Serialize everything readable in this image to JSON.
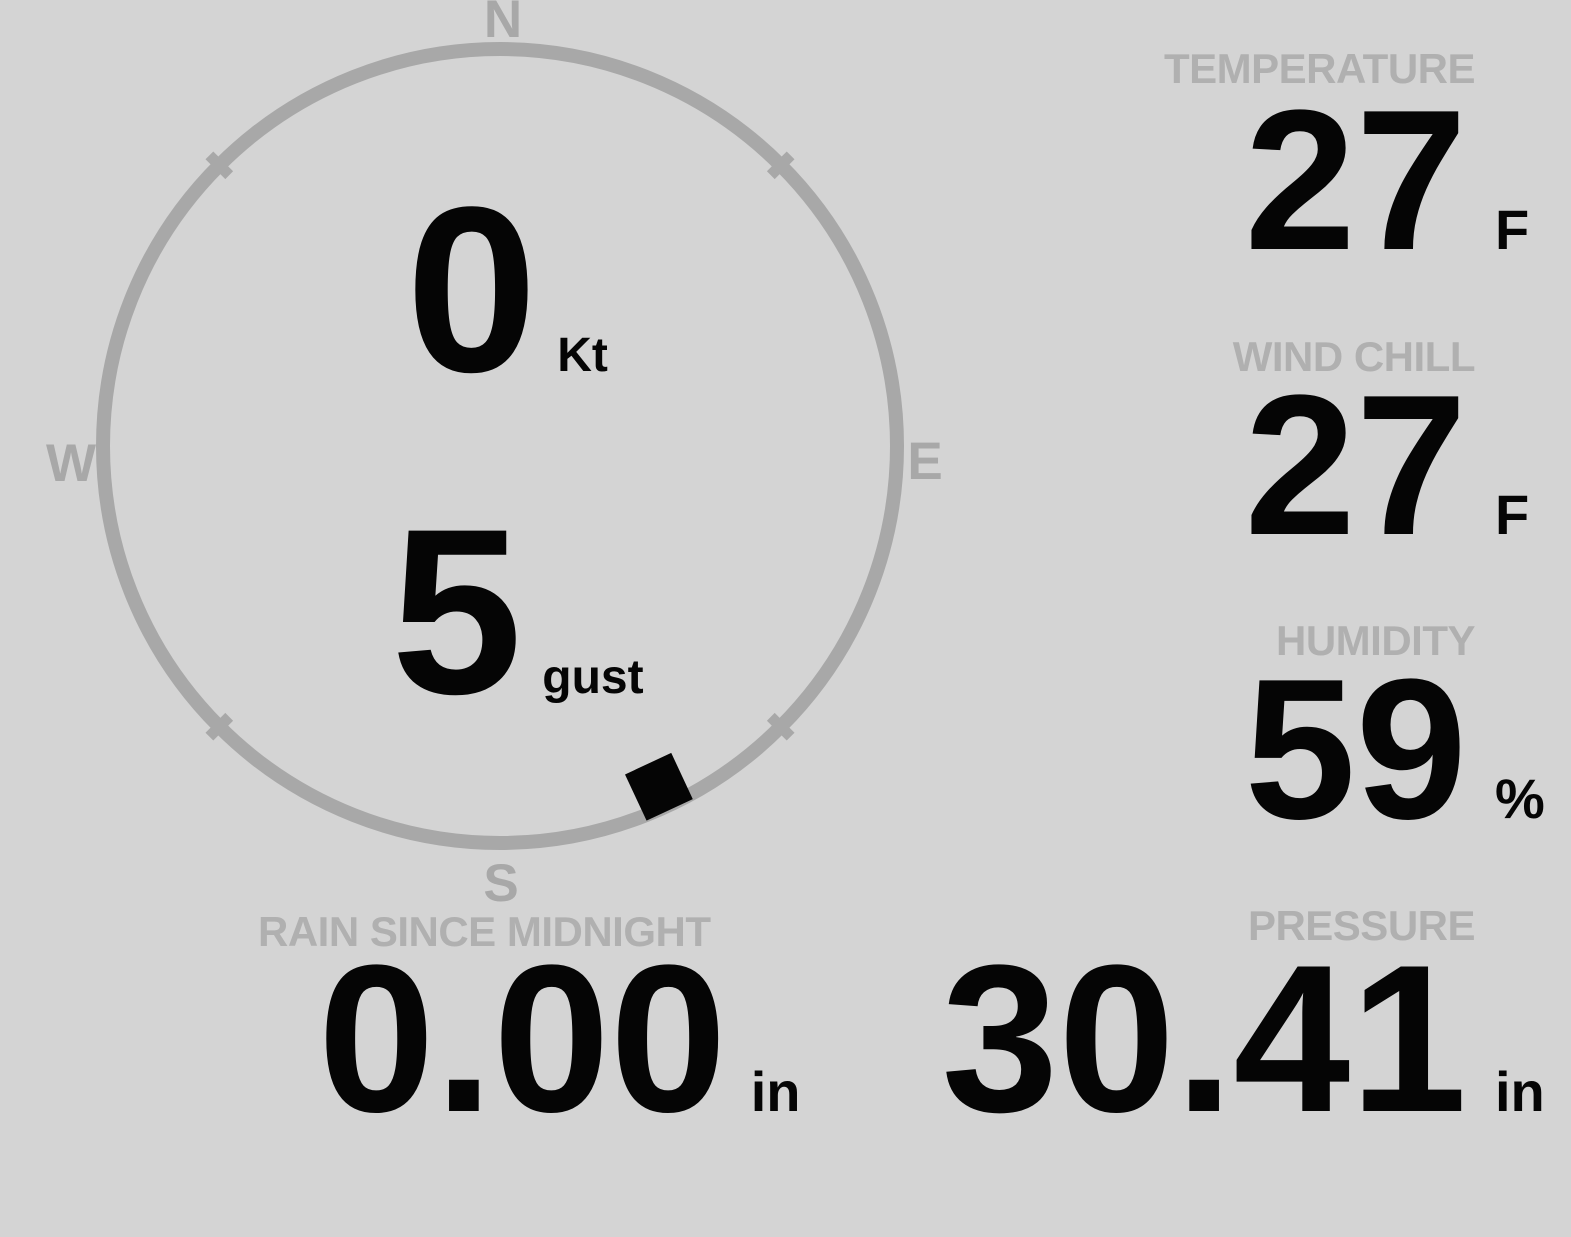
{
  "theme": {
    "background": "#d4d4d4",
    "label_gray": "#b0b0b0",
    "ring_gray": "#a8a8a8",
    "value_black": "#050505"
  },
  "compass": {
    "cardinals": {
      "north": "N",
      "east": "E",
      "south": "S",
      "west": "W"
    },
    "wind_speed": {
      "value": "0",
      "unit": "Kt"
    },
    "wind_gust": {
      "value": "5",
      "unit": "gust"
    },
    "direction_deg": 155
  },
  "metrics": {
    "temperature": {
      "label": "TEMPERATURE",
      "value": "27",
      "unit": "F"
    },
    "wind_chill": {
      "label": "WIND CHILL",
      "value": "27",
      "unit": "F"
    },
    "humidity": {
      "label": "HUMIDITY",
      "value": "59",
      "unit": "%"
    },
    "rain_since_midnight": {
      "label": "RAIN SINCE MIDNIGHT",
      "value": "0.00",
      "unit": "in"
    },
    "pressure": {
      "label": "PRESSURE",
      "value": "30.41",
      "unit": "in"
    }
  }
}
